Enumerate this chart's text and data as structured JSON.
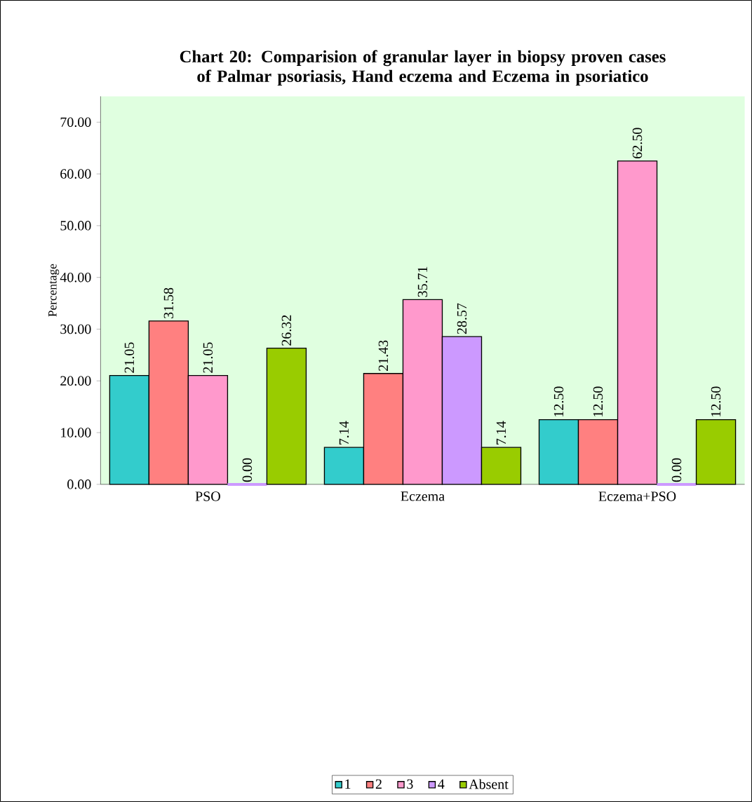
{
  "chart_data": {
    "type": "bar",
    "title": "Chart  20: Comparision of granular layer in biopsy proven cases of  Palmar psoriasis, Hand eczema and Eczema in psoriatico",
    "ylabel": "Percentage",
    "categories": [
      "PSO",
      "Eczema",
      "Eczema+PSO"
    ],
    "series": [
      {
        "name": "1",
        "color": "#33cccc",
        "values": [
          21.05,
          7.14,
          12.5
        ],
        "value_labels": [
          "21.05",
          "7.14",
          "12.50"
        ]
      },
      {
        "name": "2",
        "color": "#ff8080",
        "values": [
          31.58,
          21.43,
          12.5
        ],
        "value_labels": [
          "31.58",
          "21.43",
          "12.50"
        ]
      },
      {
        "name": "3",
        "color": "#ff99cc",
        "values": [
          21.05,
          35.71,
          62.5
        ],
        "value_labels": [
          "21.05",
          "35.71",
          "62.50"
        ]
      },
      {
        "name": "4",
        "color": "#cc99ff",
        "values": [
          0,
          28.57,
          0
        ],
        "value_labels": [
          "0.00",
          "28.57",
          "0.00"
        ]
      },
      {
        "name": "Absent",
        "color": "#99cc00",
        "values": [
          26.32,
          7.14,
          12.5
        ],
        "value_labels": [
          "26.32",
          "7.14",
          "12.50"
        ]
      }
    ],
    "ylim": [
      0,
      75
    ],
    "yticks": [
      {
        "value": 0,
        "label": "0.00"
      },
      {
        "value": 10,
        "label": "10.00"
      },
      {
        "value": 20,
        "label": "20.00"
      },
      {
        "value": 30,
        "label": "30.00"
      },
      {
        "value": 40,
        "label": "40.00"
      },
      {
        "value": 50,
        "label": "50.00"
      },
      {
        "value": 60,
        "label": "60.00"
      },
      {
        "value": 70,
        "label": "70.00"
      }
    ],
    "legend": "bottom"
  }
}
